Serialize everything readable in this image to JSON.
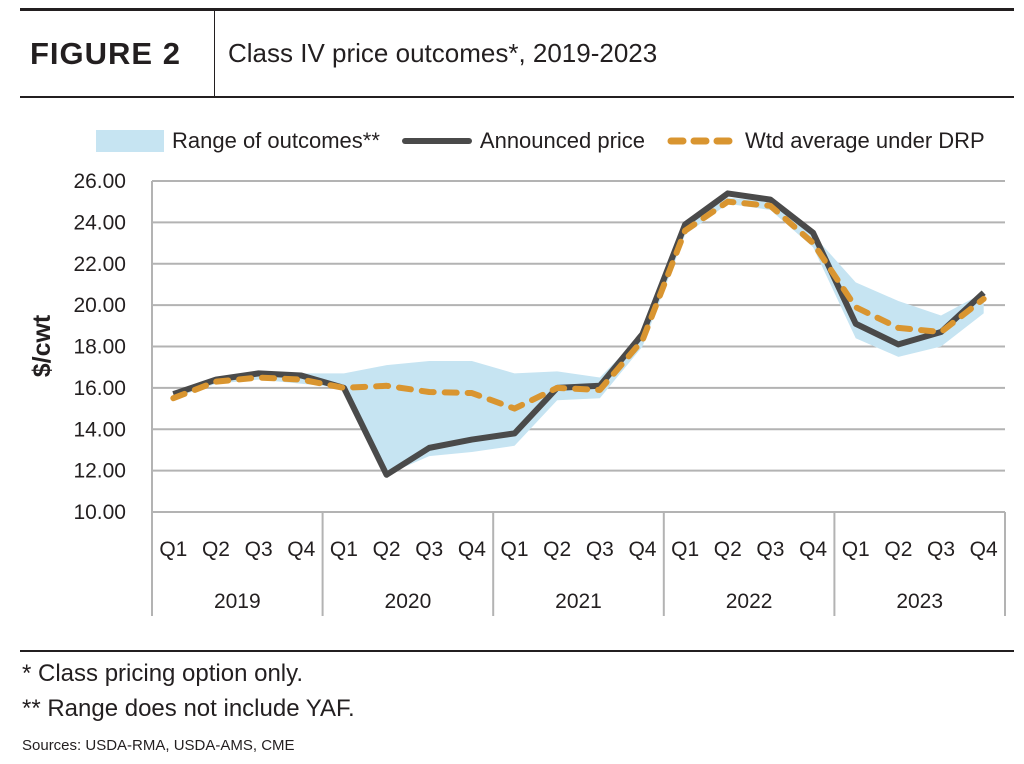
{
  "header": {
    "figure_label": "FIGURE 2",
    "title": "Class IV price outcomes*, 2019-2023"
  },
  "colors": {
    "range": "#c6e4f2",
    "announced": "#4a4a4a",
    "wtd": "#d99530",
    "grid": "#b3b3b3"
  },
  "chart_data": {
    "type": "line",
    "title": "Class IV price outcomes*, 2019-2023",
    "ylabel": "$/cwt",
    "ylim": [
      10,
      26
    ],
    "yticks": [
      "10.00",
      "12.00",
      "14.00",
      "16.00",
      "18.00",
      "20.00",
      "22.00",
      "24.00",
      "26.00"
    ],
    "grid": true,
    "legend_position": "top",
    "quarters": [
      "Q1",
      "Q2",
      "Q3",
      "Q4"
    ],
    "years": [
      "2019",
      "2020",
      "2021",
      "2022",
      "2023"
    ],
    "categories": [
      "2019 Q1",
      "2019 Q2",
      "2019 Q3",
      "2019 Q4",
      "2020 Q1",
      "2020 Q2",
      "2020 Q3",
      "2020 Q4",
      "2021 Q1",
      "2021 Q2",
      "2021 Q3",
      "2021 Q4",
      "2022 Q1",
      "2022 Q2",
      "2022 Q3",
      "2022 Q4",
      "2023 Q1",
      "2023 Q2",
      "2023 Q3",
      "2023 Q4"
    ],
    "series": [
      {
        "name": "Range of outcomes**",
        "type": "area",
        "low": [
          15.5,
          16.2,
          16.4,
          16.2,
          16.0,
          11.8,
          12.7,
          12.9,
          13.2,
          15.4,
          15.5,
          18.0,
          23.4,
          24.9,
          24.6,
          22.8,
          18.4,
          17.5,
          18.0,
          19.6
        ],
        "high": [
          15.8,
          16.4,
          16.7,
          16.7,
          16.7,
          17.1,
          17.3,
          17.3,
          16.7,
          16.8,
          16.5,
          18.6,
          23.9,
          25.2,
          25.0,
          23.4,
          21.1,
          20.2,
          19.5,
          20.6
        ]
      },
      {
        "name": "Announced price",
        "type": "line",
        "values": [
          15.7,
          16.4,
          16.7,
          16.6,
          16.0,
          11.8,
          13.1,
          13.5,
          13.8,
          16.0,
          16.1,
          18.6,
          23.9,
          25.4,
          25.1,
          23.5,
          19.1,
          18.1,
          18.7,
          20.6
        ]
      },
      {
        "name": "Wtd average under DRP",
        "type": "line",
        "dashed": true,
        "values": [
          15.5,
          16.3,
          16.5,
          16.4,
          16.0,
          16.1,
          15.8,
          15.75,
          15.0,
          16.0,
          15.9,
          18.3,
          23.6,
          25.0,
          24.8,
          23.0,
          19.9,
          18.9,
          18.7,
          20.3
        ]
      }
    ]
  },
  "footnotes": [
    "* Class pricing option only.",
    "** Range does not include YAF."
  ],
  "sources": "Sources: USDA-RMA, USDA-AMS, CME"
}
